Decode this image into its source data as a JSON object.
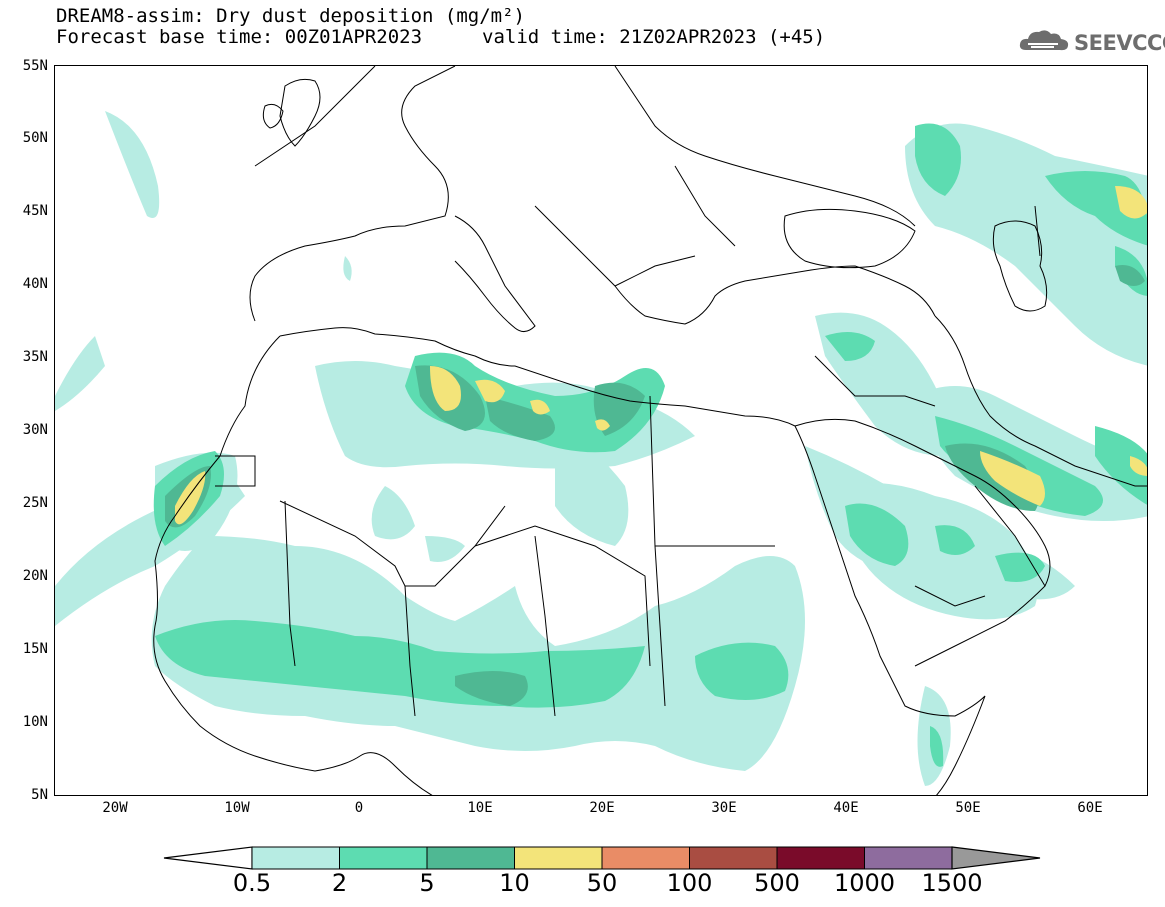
{
  "header": {
    "title": "DREAM8-assim: Dry dust deposition (mg/m²)",
    "base_time": "Forecast base time: 00Z01APR2023",
    "valid_time": "valid time: 21Z02APR2023 (+45)"
  },
  "logo": {
    "text": "SEEVCCC",
    "icon": "cloud-icon"
  },
  "map": {
    "projection": "lat-lon",
    "lon_range": [
      -25,
      65
    ],
    "lat_range": [
      5,
      55
    ],
    "lat_ticks": [
      "55N",
      "50N",
      "45N",
      "40N",
      "35N",
      "30N",
      "25N",
      "20N",
      "15N",
      "10N",
      "5N"
    ],
    "lon_ticks": [
      "20W",
      "10W",
      "0",
      "10E",
      "20E",
      "30E",
      "40E",
      "50E",
      "60E"
    ]
  },
  "legend": {
    "levels": [
      "0.5",
      "2",
      "5",
      "10",
      "50",
      "100",
      "500",
      "1000",
      "1500"
    ],
    "colors": [
      "#b7ece3",
      "#5ddcb1",
      "#4fb893",
      "#f3e47a",
      "#e98c66",
      "#a94d42",
      "#7a0b2a",
      "#8e6c9e"
    ],
    "under_color": "#ffffff",
    "over_color": "#999999"
  }
}
